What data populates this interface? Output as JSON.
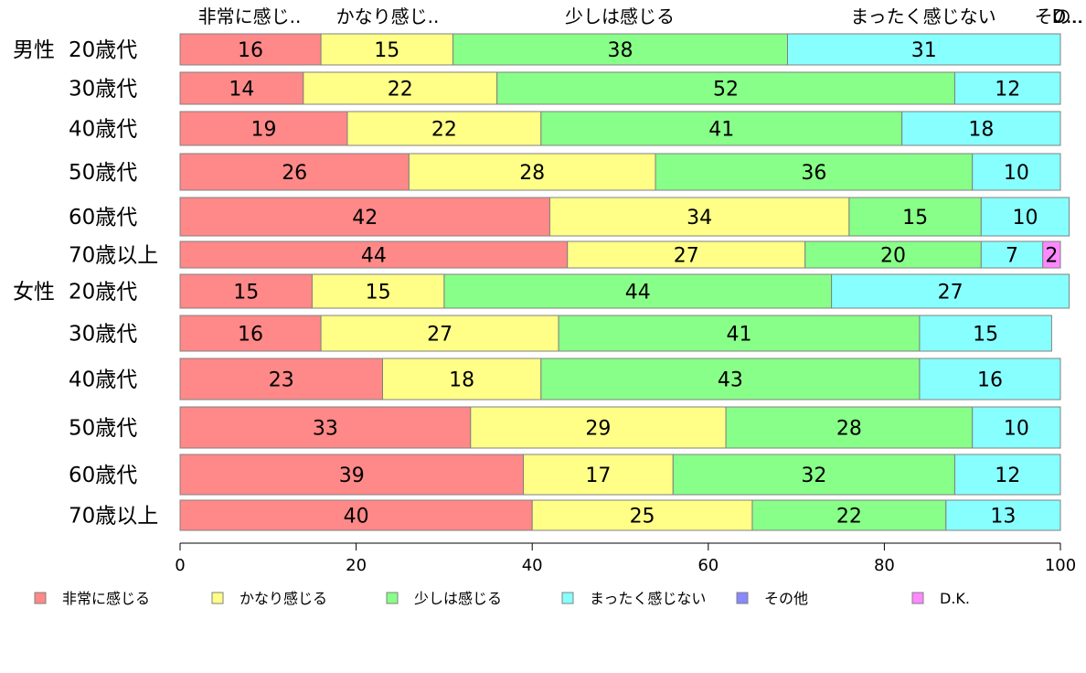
{
  "chart_data": {
    "type": "bar",
    "orientation": "horizontal",
    "stacked": true,
    "xlim": [
      0,
      100
    ],
    "xticks": [
      0,
      20,
      40,
      60,
      80,
      100
    ],
    "grid": false,
    "legend_position": "bottom",
    "column_labels": [
      "非常に感じ..",
      "かなり感じ..",
      "少しは感じる",
      "まったく感じない",
      "その..",
      "D..."
    ],
    "groups": [
      {
        "label": "男性",
        "first_row": 0
      },
      {
        "label": "女性",
        "first_row": 6
      }
    ],
    "categories": [
      "20歳代",
      "30歳代",
      "40歳代",
      "50歳代",
      "60歳代",
      "70歳以上",
      "20歳代",
      "30歳代",
      "40歳代",
      "50歳代",
      "60歳代",
      "70歳以上"
    ],
    "series": [
      {
        "name": "非常に感じる",
        "color": "#ff8888",
        "values": [
          16,
          14,
          19,
          26,
          42,
          44,
          15,
          16,
          23,
          33,
          39,
          40
        ]
      },
      {
        "name": "かなり感じる",
        "color": "#ffff88",
        "values": [
          15,
          22,
          22,
          28,
          34,
          27,
          15,
          27,
          18,
          29,
          17,
          25
        ]
      },
      {
        "name": "少しは感じる",
        "color": "#88ff88",
        "values": [
          38,
          52,
          41,
          36,
          15,
          20,
          44,
          41,
          43,
          28,
          32,
          22
        ]
      },
      {
        "name": "まったく感じない",
        "color": "#88ffff",
        "values": [
          31,
          12,
          18,
          10,
          10,
          7,
          27,
          15,
          16,
          10,
          12,
          13
        ]
      },
      {
        "name": "その他",
        "color": "#8888ff",
        "values": [
          0,
          0,
          0,
          0,
          0,
          0,
          0,
          0,
          0,
          0,
          0,
          0
        ]
      },
      {
        "name": "D.K.",
        "color": "#ff88ff",
        "values": [
          0,
          0,
          0,
          0,
          0,
          2,
          0,
          0,
          0,
          0,
          0,
          0
        ]
      }
    ]
  }
}
